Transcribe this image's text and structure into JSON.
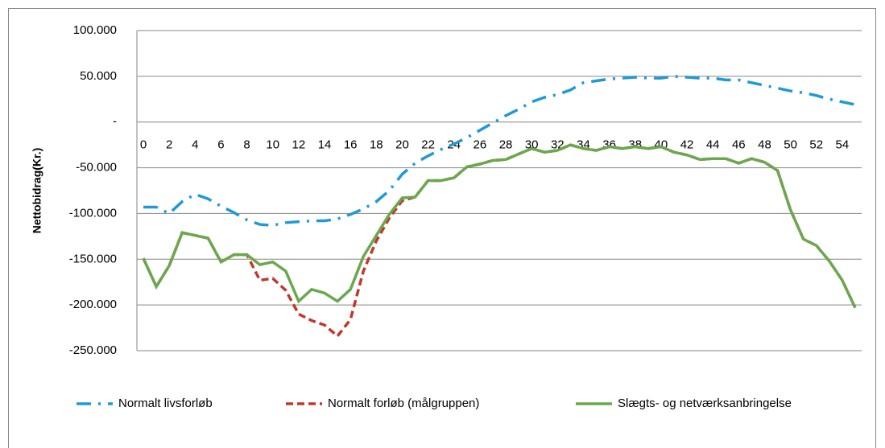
{
  "chart_data": {
    "type": "line",
    "ylabel": "Nettobidrag(Kr.)",
    "categories": [
      0,
      null,
      2,
      null,
      4,
      null,
      6,
      null,
      8,
      null,
      10,
      null,
      12,
      null,
      14,
      null,
      16,
      null,
      18,
      null,
      20,
      null,
      22,
      null,
      24,
      null,
      26,
      null,
      28,
      null,
      30,
      null,
      32,
      null,
      34,
      null,
      36,
      null,
      38,
      null,
      40,
      null,
      42,
      null,
      44,
      null,
      46,
      null,
      48,
      null,
      50,
      null,
      52,
      null,
      54,
      null
    ],
    "ylim": [
      -250000,
      100000
    ],
    "yticks": [
      {
        "value": 100000,
        "label": "100.000"
      },
      {
        "value": 50000,
        "label": "50.000"
      },
      {
        "value": 0,
        "label": "-"
      },
      {
        "value": -50000,
        "label": "-50.000"
      },
      {
        "value": -100000,
        "label": "-100.000"
      },
      {
        "value": -150000,
        "label": "-150.000"
      },
      {
        "value": -200000,
        "label": "-200.000"
      },
      {
        "value": -250000,
        "label": "-250.000"
      }
    ],
    "grid": true,
    "legend": "bottom",
    "series": [
      {
        "name": "Normalt livsforløb",
        "color": "#1f9ad6",
        "style": "dash-dot",
        "values": [
          -93000,
          -93000,
          -100000,
          -87000,
          -79000,
          -84000,
          -92000,
          -99000,
          -107000,
          -112000,
          -113000,
          -110000,
          -109000,
          -108000,
          -108000,
          -106000,
          -101000,
          -95000,
          -87000,
          -75000,
          -57000,
          -45000,
          -37000,
          -30000,
          -24000,
          -17000,
          -9000,
          -1000,
          7000,
          14000,
          22000,
          27000,
          30000,
          35000,
          43000,
          45000,
          47000,
          48000,
          49000,
          48000,
          48000,
          50000,
          49000,
          48000,
          48000,
          46000,
          46000,
          43000,
          40000,
          37000,
          34000,
          32000,
          29000,
          25000,
          22000,
          19000
        ]
      },
      {
        "name": "Normalt forløb (målgruppen)",
        "color": "#c0392b",
        "style": "dashed",
        "values": [
          -149000,
          -180000,
          -157000,
          -121000,
          -124000,
          -127000,
          -153000,
          -145000,
          -145000,
          -173000,
          -171000,
          -184000,
          -210000,
          -217000,
          -222000,
          -234000,
          -216000,
          -163000,
          -130000,
          -105000,
          -86000,
          -82000,
          -64000,
          -64000,
          -61000,
          -49000,
          -46000,
          -42000,
          -41000,
          -35000,
          -29000,
          -33000,
          -31000,
          -25000,
          -29000,
          -31000,
          -27000,
          -29000,
          -27000,
          -29000,
          -27000,
          -33000,
          -36000,
          -41000,
          -40000,
          -40000,
          -45000,
          -40000,
          -44000,
          -53000,
          -96000,
          -128000,
          -135000,
          -152000,
          -173000,
          -203000
        ]
      },
      {
        "name": "Slægts- og netværksanbringelse",
        "color": "#6aa84f",
        "style": "solid",
        "values": [
          -149000,
          -180000,
          -157000,
          -121000,
          -124000,
          -127000,
          -153000,
          -145000,
          -145000,
          -156000,
          -153000,
          -163000,
          -196000,
          -183000,
          -187000,
          -196000,
          -183000,
          -147000,
          -124000,
          -101000,
          -83000,
          -82000,
          -64000,
          -64000,
          -61000,
          -49000,
          -46000,
          -42000,
          -41000,
          -35000,
          -29000,
          -33000,
          -31000,
          -25000,
          -29000,
          -31000,
          -27000,
          -29000,
          -27000,
          -29000,
          -27000,
          -33000,
          -36000,
          -41000,
          -40000,
          -40000,
          -45000,
          -40000,
          -44000,
          -53000,
          -96000,
          -128000,
          -135000,
          -152000,
          -173000,
          -203000
        ]
      }
    ]
  }
}
